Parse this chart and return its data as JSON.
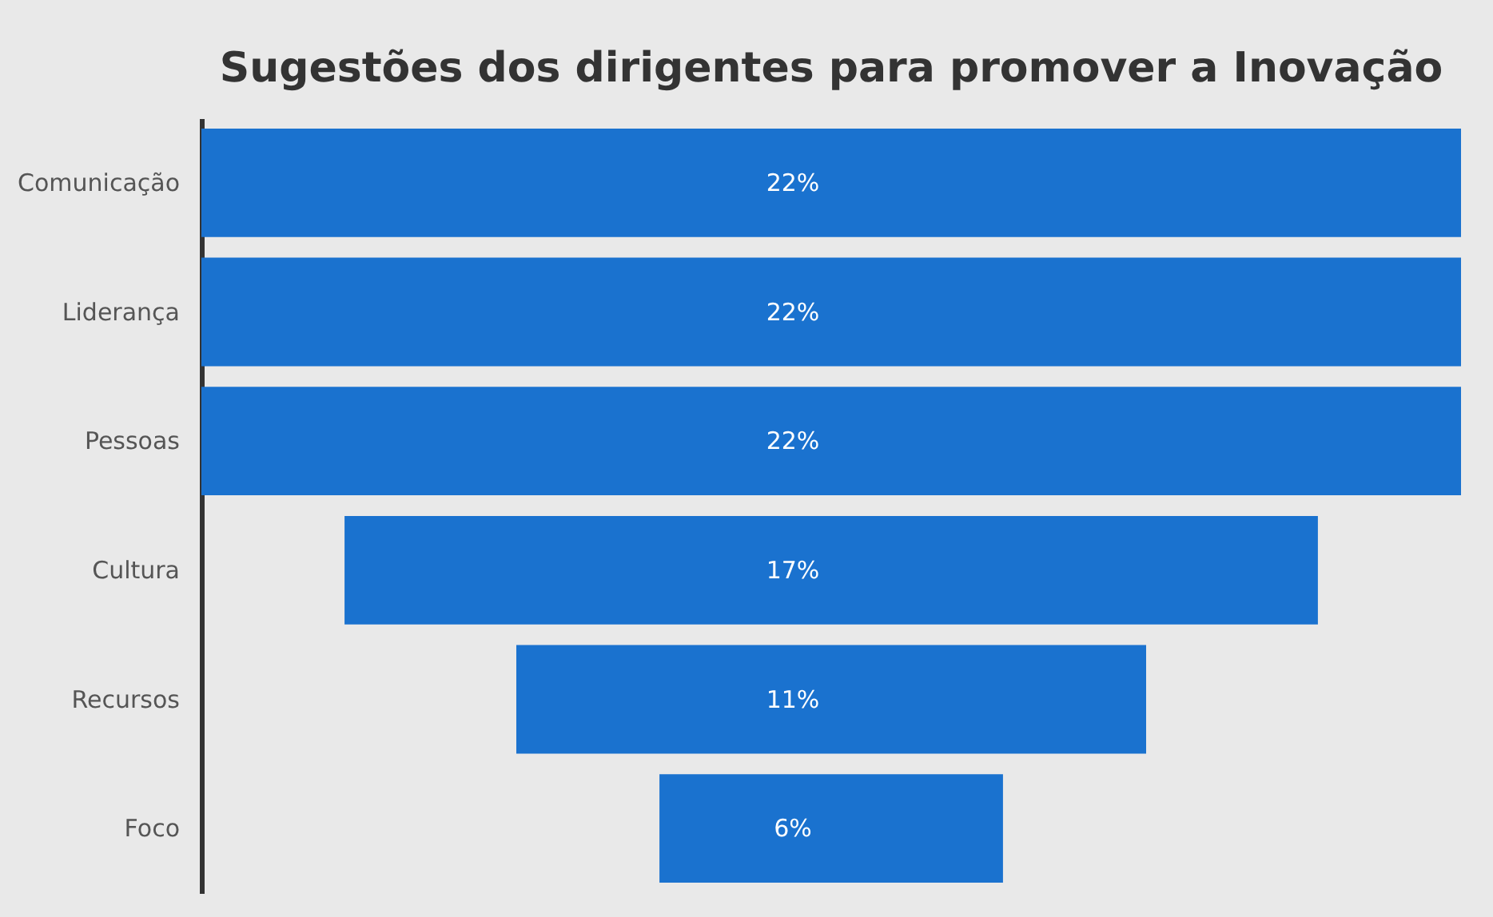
{
  "chart_data": {
    "type": "other",
    "title": "Sugestões dos dirigentes para promover a Inovação",
    "categories": [
      "Comunicação",
      "Liderança",
      "Pessoas",
      "Cultura",
      "Recursos",
      "Foco"
    ],
    "values": [
      22,
      22,
      22,
      17,
      11,
      6
    ],
    "value_labels": [
      "22%",
      "22%",
      "22%",
      "17%",
      "11%",
      "6%"
    ],
    "color": "#1a72cf"
  }
}
